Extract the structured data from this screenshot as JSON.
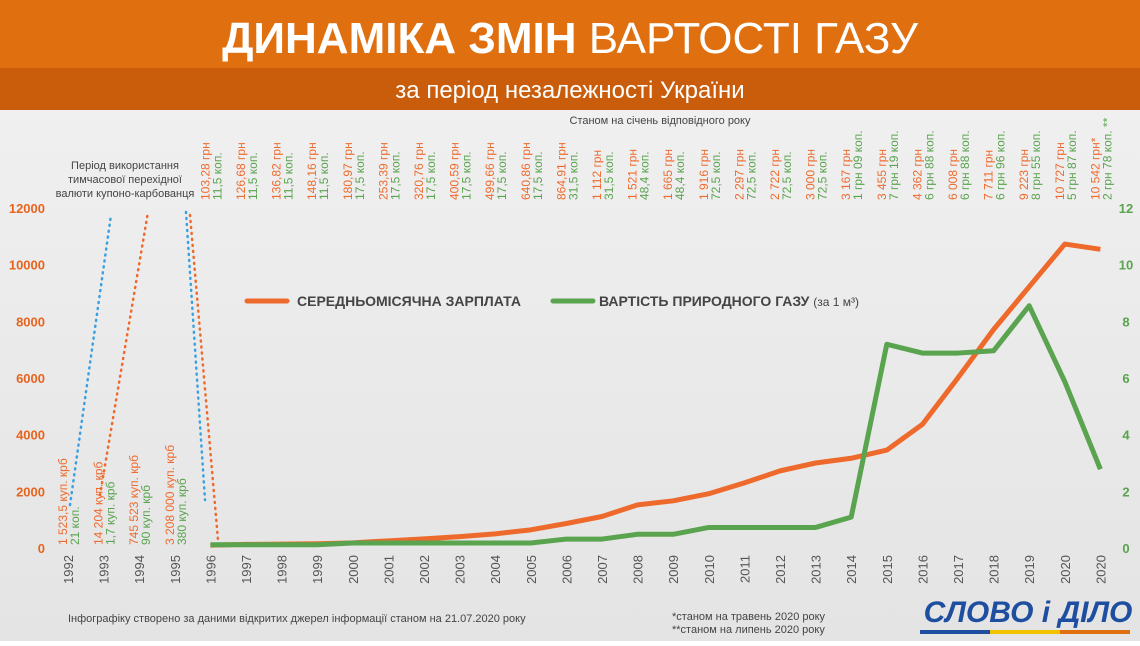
{
  "header": {
    "title_bold": "ДИНАМІКА ЗМІН",
    "title_regular": "ВАРТОСТІ ГАЗУ",
    "subtitle": "за період незалежності України"
  },
  "chart_data": {
    "type": "line",
    "note_top": "Станом на січень відповідного року",
    "note_left": [
      "Період використання",
      "тимчасової перехідної",
      "валюти купоно-карбованця"
    ],
    "categories": [
      "1992",
      "1993",
      "1994",
      "1995",
      "1996",
      "1997",
      "1998",
      "1999",
      "2000",
      "2001",
      "2002",
      "2003",
      "2004",
      "2005",
      "2006",
      "2007",
      "2008",
      "2009",
      "2010",
      "2011",
      "2012",
      "2013",
      "2014",
      "2015",
      "2016",
      "2017",
      "2018",
      "2019",
      "2020",
      "2020"
    ],
    "series": [
      {
        "name": "СЕРЕДНЬОМІСЯЧНА ЗАРПЛАТА",
        "color": "#ee6a2c",
        "axis": "y",
        "values": [
          null,
          null,
          null,
          null,
          103.28,
          126.68,
          136.82,
          148.16,
          180.97,
          253.39,
          320.76,
          400.59,
          499.66,
          640.86,
          864.91,
          1112,
          1521,
          1665,
          1916,
          2297,
          2722,
          3000,
          3167,
          3455,
          4362,
          6008,
          7711,
          9223,
          10727,
          10542
        ],
        "value_labels": [
          "1 523,5 куп. крб",
          "14 204 куп. крб",
          "745 523 куп. крб",
          "3 208 000 куп. крб",
          "103,28 грн",
          "126,68 грн",
          "136,82 грн",
          "148,16 грн",
          "180,97 грн",
          "253,39 грн",
          "320,76 грн",
          "400,59 грн",
          "499,66 грн",
          "640,86 грн",
          "864,91 грн",
          "1 112 грн",
          "1 521 грн",
          "1 665 грн",
          "1 916 грн",
          "2 297 грн",
          "2 722 грн",
          "3 000 грн",
          "3 167 грн",
          "3 455 грн",
          "4 362 грн",
          "6 008 грн",
          "7 711 грн",
          "9 223 грн",
          "10 727 грн",
          "10 542 грн*"
        ]
      },
      {
        "name": "ВАРТІСТЬ ПРИРОДНОГО ГАЗУ",
        "unit": "(за 1 м³)",
        "color": "#5aa34f",
        "axis": "y2",
        "values": [
          null,
          null,
          null,
          null,
          0.115,
          0.115,
          0.115,
          0.115,
          0.175,
          0.175,
          0.175,
          0.175,
          0.175,
          0.175,
          0.315,
          0.315,
          0.484,
          0.484,
          0.725,
          0.725,
          0.725,
          0.725,
          1.09,
          7.19,
          6.88,
          6.88,
          6.96,
          8.55,
          5.87,
          2.78
        ],
        "value_labels": [
          "21 коп.",
          "1,7 куп. крб",
          "90 куп. крб",
          "380 куп. крб",
          "11,5 коп.",
          "11,5 коп.",
          "11,5 коп.",
          "11,5 коп.",
          "17,5 коп.",
          "17,5 коп.",
          "17,5 коп.",
          "17,5 коп.",
          "17,5 коп.",
          "17,5 коп.",
          "31,5 коп.",
          "31,5 коп.",
          "48,4 коп.",
          "48,4 коп.",
          "72,5 коп.",
          "72,5 коп.",
          "72,5 коп.",
          "72,5 коп.",
          "1 грн 09 коп.",
          "7 грн 19 коп.",
          "6 грн 88 коп.",
          "6 грн 88 коп.",
          "6 грн 96 коп.",
          "8 грн 55 коп.",
          "5 грн 87 коп.",
          "2 грн 78 коп. **"
        ]
      }
    ],
    "ylim": [
      0,
      12000
    ],
    "yticks": [
      0,
      2000,
      4000,
      6000,
      8000,
      10000,
      12000
    ],
    "y2lim": [
      0,
      12
    ],
    "y2ticks": [
      0,
      2,
      4,
      6,
      8,
      10,
      12
    ],
    "grid": false,
    "legend": "top"
  },
  "footer": {
    "source": "Інфографіку створено за даними відкритих джерел інформації станом на 21.07.2020 року",
    "note1": "*станом на травень 2020 року",
    "note2": "**станом на липень 2020 року",
    "logo": "СЛОВО і ДІЛО"
  }
}
